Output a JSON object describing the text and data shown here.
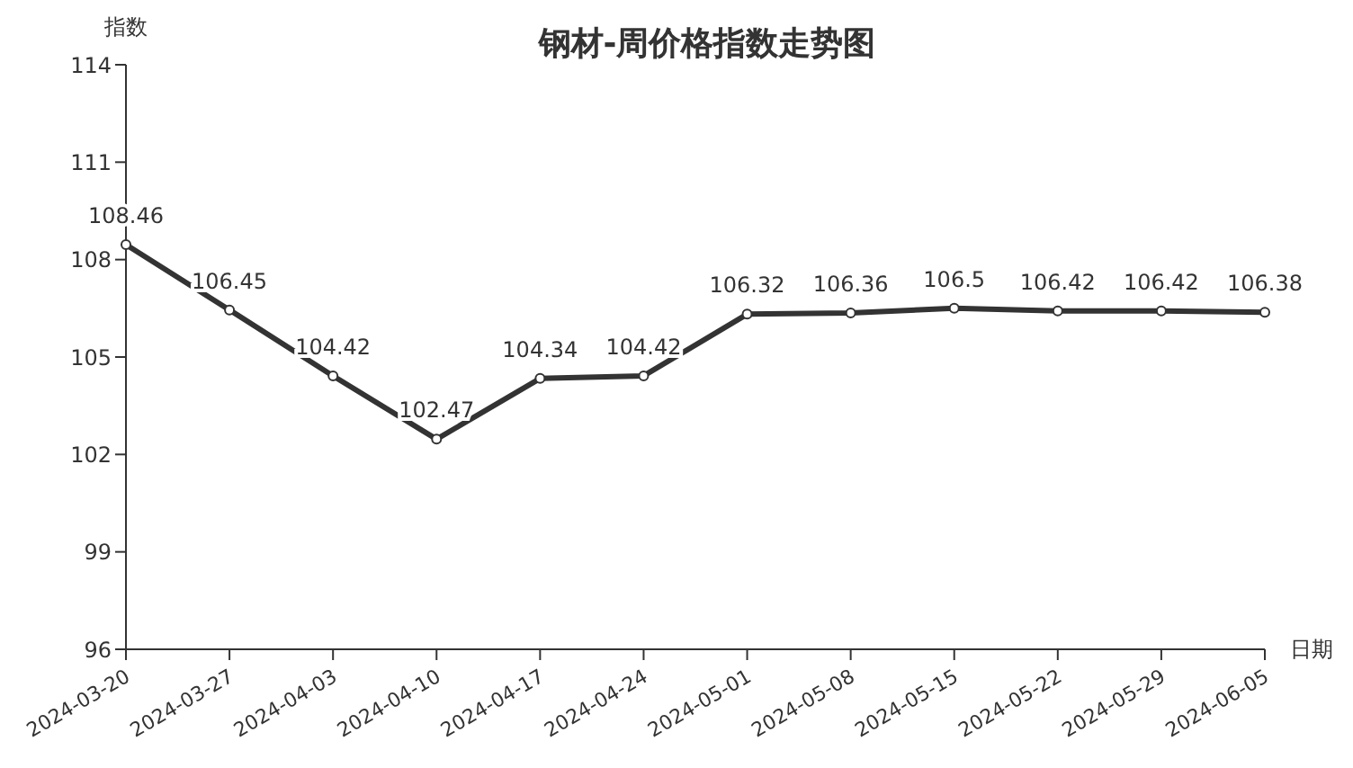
{
  "chart_data": {
    "type": "line",
    "title": "钢材-周价格指数走势图",
    "xlabel": "日期",
    "ylabel": "指数",
    "categories": [
      "2024-03-20",
      "2024-03-27",
      "2024-04-03",
      "2024-04-10",
      "2024-04-17",
      "2024-04-24",
      "2024-05-01",
      "2024-05-08",
      "2024-05-15",
      "2024-05-22",
      "2024-05-29",
      "2024-06-05"
    ],
    "series": [
      {
        "color": "#333333",
        "values": [
          108.46,
          106.45,
          104.42,
          102.47,
          104.34,
          104.42,
          106.32,
          106.36,
          106.5,
          106.42,
          106.42,
          106.38
        ]
      }
    ],
    "ylim": [
      96,
      114
    ],
    "yticks": [
      96,
      99,
      102,
      105,
      108,
      111,
      114
    ],
    "data_labels": true,
    "marker": "circle",
    "line_style": "solid"
  }
}
